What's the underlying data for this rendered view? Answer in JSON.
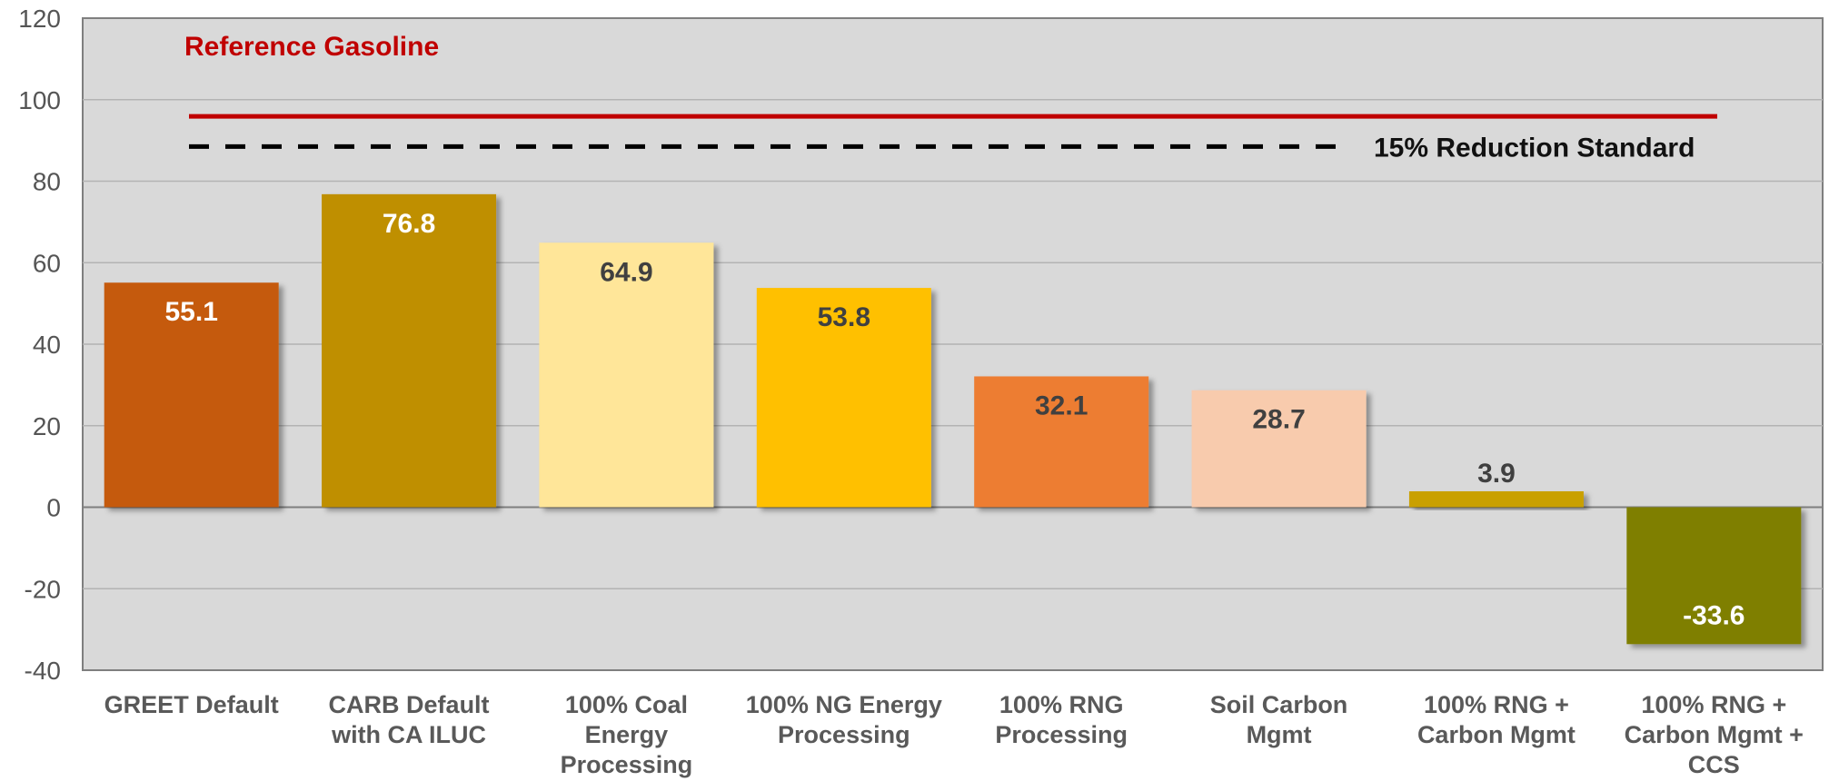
{
  "chart_data": {
    "type": "bar",
    "categories": [
      [
        "GREET Default"
      ],
      [
        "CARB Default",
        "with CA ILUC"
      ],
      [
        "100% Coal",
        "Energy",
        "Processing"
      ],
      [
        "100% NG Energy",
        "Processing"
      ],
      [
        "100% RNG",
        "Processing"
      ],
      [
        "Soil Carbon",
        "Mgmt"
      ],
      [
        "100% RNG +",
        "Carbon Mgmt"
      ],
      [
        "100% RNG +",
        "Carbon Mgmt +",
        "CCS"
      ]
    ],
    "values": [
      55.1,
      76.8,
      64.9,
      53.8,
      32.1,
      28.7,
      3.9,
      -33.6
    ],
    "value_labels": [
      "55.1",
      "76.8",
      "64.9",
      "53.8",
      "32.1",
      "28.7",
      "3.9",
      "-33.6"
    ],
    "bar_colors": [
      "#c55a11",
      "#bf8f00",
      "#ffe699",
      "#ffc000",
      "#ed7d31",
      "#f8cbad",
      "#c9a000",
      "#7f7f00"
    ],
    "label_colors": [
      "#ffffff",
      "#ffffff",
      "#404040",
      "#404040",
      "#404040",
      "#404040",
      "#404040",
      "#ffffff"
    ],
    "ylim": [
      -40,
      120
    ],
    "yticks": [
      "-40",
      "-20",
      "0",
      "20",
      "40",
      "60",
      "80",
      "100",
      "120"
    ],
    "grid": true,
    "reference_lines": [
      {
        "label": "Reference Gasoline",
        "value": 95.9,
        "style": "solid",
        "color": "#c00000"
      },
      {
        "label": "15%  Reduction Standard",
        "value": 88.5,
        "style": "dashed",
        "color": "#000000"
      }
    ],
    "title": "",
    "xlabel": "",
    "ylabel": ""
  }
}
